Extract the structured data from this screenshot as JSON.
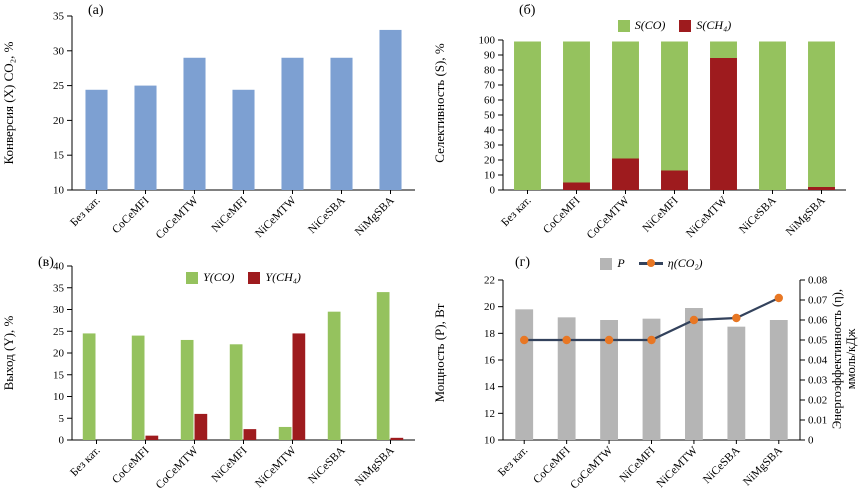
{
  "chart_data": [
    {
      "panel_label": "(а)",
      "type": "bar",
      "ylabel": "Конверсия (X) CO₂, %",
      "categories": [
        "Без кат.",
        "CoCeMFI",
        "CoCeMTW",
        "NiCeMFI",
        "NiCeMTW",
        "NiCeSBA",
        "NiMgSBA"
      ],
      "values": [
        24.4,
        25,
        29,
        24.4,
        29,
        29,
        33
      ],
      "ylim": [
        10,
        35
      ],
      "yticks": [
        10,
        15,
        20,
        25,
        30,
        35
      ],
      "bar_color": "#7da0d2",
      "grid": false,
      "legend_position": "none"
    },
    {
      "panel_label": "(б)",
      "type": "stacked_bar",
      "ylabel": "Селективность (S), %",
      "categories": [
        "Без кат.",
        "CoCeMFI",
        "CoCeMTW",
        "NiCeMFI",
        "NiCeMTW",
        "NiCeSBA",
        "NiMgSBA"
      ],
      "series": [
        {
          "name": "S(CO)",
          "color": "#95c25e",
          "values": [
            99,
            94,
            78,
            86,
            11,
            99,
            97
          ]
        },
        {
          "name": "S(CH₄)",
          "color": "#9e1b1e",
          "values": [
            0,
            5,
            21,
            13,
            88,
            0,
            2
          ]
        }
      ],
      "ylim": [
        0,
        100
      ],
      "yticks": [
        0,
        10,
        20,
        30,
        40,
        50,
        60,
        70,
        80,
        90,
        100
      ],
      "grid": false,
      "legend_position": "top"
    },
    {
      "panel_label": "(в)",
      "type": "grouped_bar",
      "ylabel": "Выход (Y), %",
      "categories": [
        "Без кат.",
        "CoCeMFI",
        "CoCeMTW",
        "NiCeMFI",
        "NiCeMTW",
        "NiCeSBA",
        "NiMgSBA"
      ],
      "series": [
        {
          "name": "Y(CO)",
          "color": "#95c25e",
          "values": [
            24.5,
            24,
            23,
            22,
            3,
            29.5,
            34
          ]
        },
        {
          "name": "Y(CH₄)",
          "color": "#9e1b1e",
          "values": [
            0,
            1,
            6,
            2.5,
            24.5,
            0,
            0.5
          ]
        }
      ],
      "ylim": [
        0,
        40
      ],
      "yticks": [
        0,
        5,
        10,
        15,
        20,
        25,
        30,
        35,
        40
      ],
      "grid": false,
      "legend_position": "top"
    },
    {
      "panel_label": "(г)",
      "type": "combo",
      "ylabel": "Мощность (P), Вт",
      "y2label": "Энергоэффективность (η), ммоль/кДж",
      "categories": [
        "Без кат.",
        "CoCeMFI",
        "CoCeMTW",
        "NiCeMFI",
        "NiCeMTW",
        "NiCeSBA",
        "NiMgSBA"
      ],
      "bars": {
        "name": "P",
        "color": "#b5b5b5",
        "values": [
          19.8,
          19.2,
          19.0,
          19.1,
          19.9,
          18.5,
          19.0
        ]
      },
      "line": {
        "name": "η(CO₂)",
        "color": "#33425c",
        "marker_color": "#e87724",
        "values": [
          0.05,
          0.05,
          0.05,
          0.05,
          0.06,
          0.061,
          0.071
        ]
      },
      "ylim": [
        10,
        22
      ],
      "yticks": [
        10,
        12,
        14,
        16,
        18,
        20,
        22
      ],
      "y2lim": [
        0,
        0.08
      ],
      "y2ticks": [
        "0",
        "0.01",
        "0.02",
        "0.03",
        "0.04",
        "0.05",
        "0.06",
        "0.07",
        "0.08"
      ],
      "grid": false,
      "legend_position": "top"
    }
  ]
}
